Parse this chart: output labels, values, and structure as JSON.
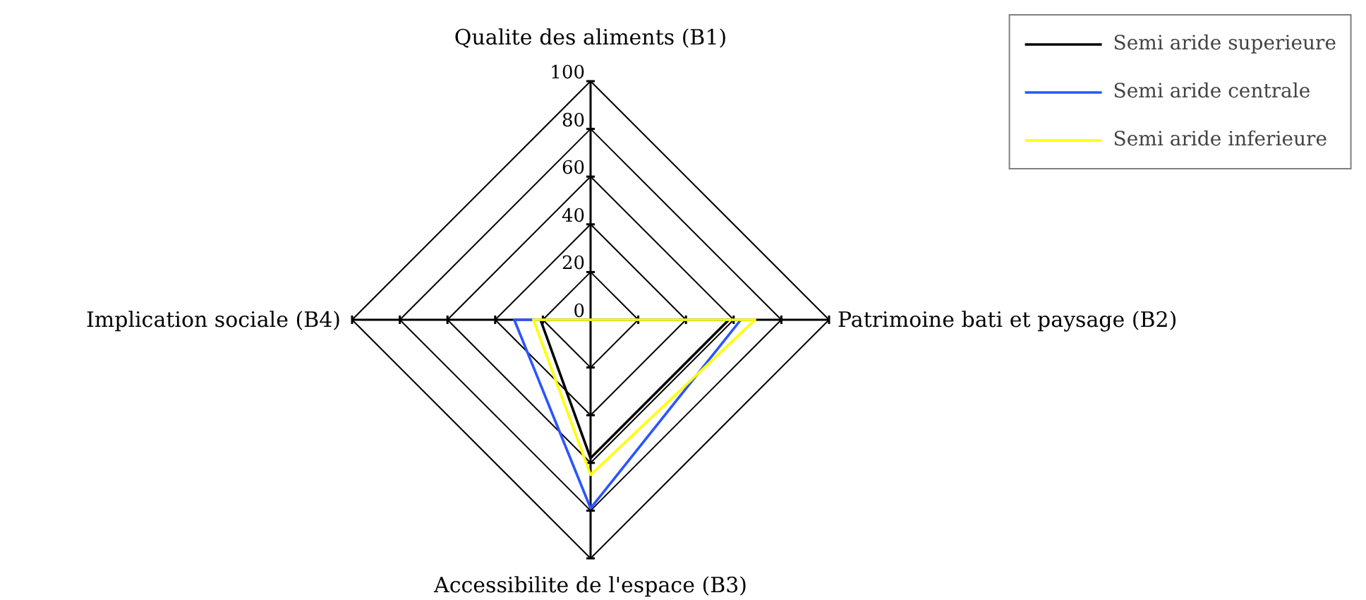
{
  "chart_data": {
    "type": "radar",
    "categories": [
      "Qualite des aliments (B1)",
      "Patrimoine bati et paysage (B2)",
      "Accessibilite de l'espace (B3)",
      "Implication sociale (B4)"
    ],
    "series": [
      {
        "name": "Semi aride superieure",
        "color": "#000000",
        "values": [
          0,
          58,
          58,
          21
        ]
      },
      {
        "name": "Semi aride centrale",
        "color": "#2b55ff",
        "values": [
          0,
          63,
          79,
          32
        ]
      },
      {
        "name": "Semi aride inferieure",
        "color": "#ffff00",
        "values": [
          0,
          69,
          65,
          24
        ]
      }
    ],
    "ylim": [
      0,
      100
    ],
    "yticks": [
      0,
      20,
      40,
      60,
      80,
      100
    ],
    "grid": true,
    "legend": "top right"
  }
}
